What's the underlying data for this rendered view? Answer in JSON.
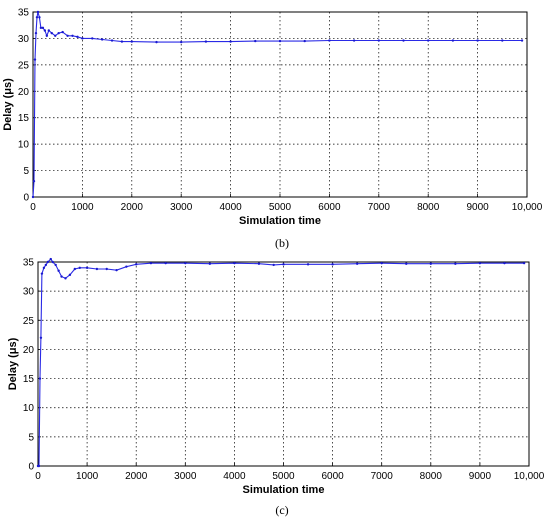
{
  "chart_data": [
    {
      "type": "line",
      "panel": "(b)",
      "xlabel": "Simulation time",
      "ylabel": "Delay (μs)",
      "xlim": [
        0,
        10000
      ],
      "ylim": [
        0,
        35
      ],
      "grid": true,
      "xticks": [
        0,
        1000,
        2000,
        3000,
        4000,
        5000,
        6000,
        7000,
        8000,
        9000,
        10000
      ],
      "xtick_labels": [
        "0",
        "1000",
        "2000",
        "3000",
        "4000",
        "5000",
        "6000",
        "7000",
        "8000",
        "9000",
        "10,000"
      ],
      "yticks": [
        0,
        5,
        10,
        15,
        20,
        25,
        30,
        35
      ],
      "series": [
        {
          "color": "#2a2ae6",
          "x": [
            0,
            20,
            40,
            60,
            80,
            100,
            130,
            160,
            200,
            240,
            280,
            320,
            380,
            450,
            520,
            600,
            700,
            800,
            900,
            1000,
            1200,
            1400,
            1600,
            1800,
            2000,
            2500,
            3000,
            3500,
            4000,
            4500,
            5000,
            5500,
            6000,
            6500,
            7000,
            7500,
            8000,
            8500,
            9000,
            9500,
            9900
          ],
          "y": [
            0,
            3,
            26,
            31,
            34,
            35,
            34,
            32,
            32,
            31.5,
            30.5,
            31.5,
            31,
            30.5,
            31,
            31.2,
            30.5,
            30.5,
            30.3,
            30,
            30,
            29.8,
            29.6,
            29.4,
            29.4,
            29.3,
            29.3,
            29.4,
            29.4,
            29.5,
            29.5,
            29.5,
            29.6,
            29.6,
            29.6,
            29.6,
            29.6,
            29.6,
            29.6,
            29.6,
            29.6
          ]
        }
      ]
    },
    {
      "type": "line",
      "panel": "(c)",
      "xlabel": "Simulation time",
      "ylabel": "Delay (μs)",
      "xlim": [
        0,
        10000
      ],
      "ylim": [
        0,
        35
      ],
      "grid": true,
      "xticks": [
        0,
        1000,
        2000,
        3000,
        4000,
        5000,
        6000,
        7000,
        8000,
        9000,
        10000
      ],
      "xtick_labels": [
        "0",
        "1000",
        "2000",
        "3000",
        "4000",
        "5000",
        "6000",
        "7000",
        "8000",
        "9000",
        "10,000"
      ],
      "yticks": [
        0,
        5,
        10,
        15,
        20,
        25,
        30,
        35
      ],
      "series": [
        {
          "color": "#2a2ae6",
          "x": [
            0,
            20,
            40,
            60,
            80,
            120,
            160,
            200,
            260,
            300,
            360,
            420,
            480,
            560,
            650,
            750,
            850,
            1000,
            1200,
            1400,
            1600,
            1800,
            2000,
            2300,
            2600,
            3000,
            3500,
            4000,
            4500,
            4800,
            5000,
            5500,
            6000,
            6500,
            7000,
            7500,
            8000,
            8500,
            9000,
            9500,
            9900
          ],
          "y": [
            0,
            0,
            15,
            22,
            33,
            34,
            34.5,
            35,
            35.5,
            35,
            34.5,
            33.5,
            32.5,
            32.2,
            32.8,
            33.8,
            34,
            34,
            33.8,
            33.8,
            33.6,
            34.2,
            34.6,
            34.8,
            34.8,
            34.8,
            34.7,
            34.8,
            34.7,
            34.5,
            34.6,
            34.6,
            34.6,
            34.7,
            34.8,
            34.7,
            34.7,
            34.7,
            34.8,
            34.8,
            34.8
          ]
        }
      ]
    }
  ]
}
